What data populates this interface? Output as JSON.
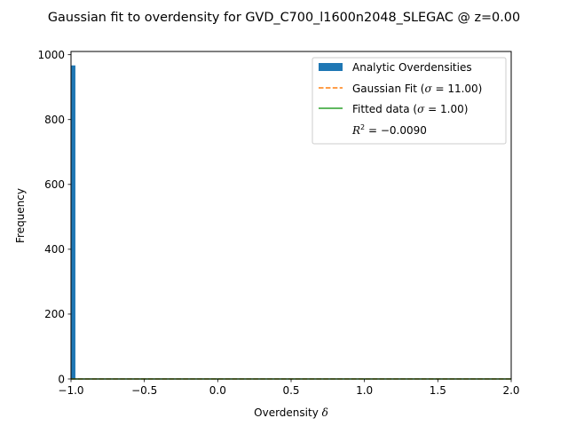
{
  "chart_data": {
    "type": "bar",
    "title": "Gaussian fit to overdensity for GVD_C700_l1600n2048_SLEGAC @ z=0.00",
    "xlabel": "Overdensity",
    "xlabel_symbol": "δ",
    "ylabel": "Frequency",
    "xlim": [
      -1.0,
      2.0
    ],
    "ylim": [
      0,
      1010
    ],
    "x_ticks": [
      -1.0,
      -0.5,
      0.0,
      0.5,
      1.0,
      1.5,
      2.0
    ],
    "x_tick_labels": [
      "−1.0",
      "−0.5",
      "0.0",
      "0.5",
      "1.0",
      "1.5",
      "2.0"
    ],
    "y_ticks": [
      0,
      200,
      400,
      600,
      800,
      1000
    ],
    "y_tick_labels": [
      "0",
      "200",
      "400",
      "600",
      "800",
      "1000"
    ],
    "grid": false,
    "legend_position": "top-right",
    "series": [
      {
        "name": "Analytic Overdensities",
        "kind": "histogram",
        "color": "#1f77b4",
        "bins": [
          {
            "x0": -1.0,
            "x1": -0.97,
            "value": 967
          }
        ]
      },
      {
        "name": "Gaussian Fit",
        "kind": "line",
        "style": "dashed",
        "color": "#ff7f0e",
        "sigma": "11.00",
        "x": [
          -1.0,
          2.0
        ],
        "y": [
          0,
          0
        ]
      },
      {
        "name": "Fitted data",
        "kind": "line",
        "style": "solid",
        "color": "#2ca02c",
        "sigma": "1.00",
        "x": [
          -1.0,
          2.0
        ],
        "y": [
          0,
          0
        ]
      }
    ],
    "r_squared": "−0.0090"
  },
  "legend": {
    "histogram_label": "Analytic Overdensities",
    "gauss_prefix": "Gaussian Fit (",
    "gauss_sigma_eq": " = 11.00)",
    "fitted_prefix": "Fitted data (",
    "fitted_sigma_eq": " = 1.00)",
    "r2_prefix": "R",
    "r2_suffix": " = −0.0090",
    "sigma_symbol": "σ",
    "squared_symbol": "2"
  }
}
